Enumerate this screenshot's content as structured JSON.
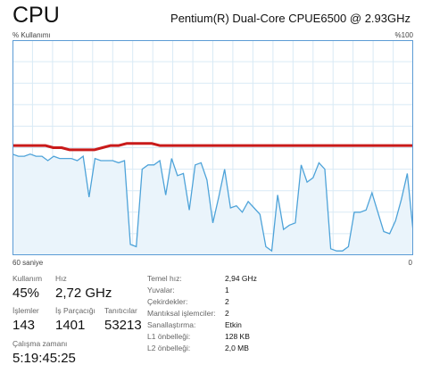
{
  "header": {
    "title": "CPU",
    "cpu_model": "Pentium(R) Dual-Core CPUE6500 @ 2.93GHz"
  },
  "graph": {
    "utilization_label": "% Kullanımı",
    "max_label": "%100",
    "time_span_label": "60 saniye",
    "min_label": "0",
    "colors": {
      "line": "#4ea3d9",
      "fill": "#eaf4fb",
      "grid": "#d9eaf5",
      "border": "#5b9bd5",
      "overlay": "#c91a1a"
    },
    "usage_percent": [
      47,
      46,
      46,
      47,
      46,
      46,
      44,
      46,
      45,
      45,
      45,
      44,
      46,
      27,
      45,
      44,
      44,
      44,
      43,
      44,
      5,
      4,
      40,
      42,
      42,
      44,
      28,
      45,
      37,
      38,
      21,
      42,
      43,
      35,
      15,
      27,
      40,
      22,
      23,
      20,
      25,
      22,
      19,
      4,
      2,
      28,
      12,
      14,
      15,
      42,
      34,
      36,
      43,
      40,
      3,
      2,
      2,
      4,
      20,
      20,
      21,
      29,
      20,
      11,
      10,
      16,
      26,
      38,
      11
    ],
    "overlay_percent": [
      51,
      51,
      51,
      51,
      51,
      50,
      50,
      49,
      49,
      49,
      49,
      50,
      51,
      51,
      52,
      52,
      52,
      52,
      51,
      51,
      51,
      51,
      51,
      51,
      51,
      51,
      51,
      51,
      51,
      51,
      51,
      51,
      51,
      51,
      51,
      51,
      51,
      51,
      51,
      51,
      51,
      51,
      51,
      51,
      51,
      51,
      51,
      51,
      51,
      51
    ]
  },
  "stats": {
    "utilization": {
      "label": "Kullanım",
      "value": "45%"
    },
    "speed": {
      "label": "Hız",
      "value": "2,72 GHz"
    },
    "processes": {
      "label": "İşlemler",
      "value": "143"
    },
    "threads": {
      "label": "İş Parçacığı",
      "value": "1401"
    },
    "handles": {
      "label": "Tanıtıcılar",
      "value": "53213"
    },
    "uptime": {
      "label": "Çalışma zamanı",
      "value": "5:19:45:25"
    }
  },
  "specs": [
    {
      "key": "Temel hız:",
      "value": "2,94 GHz"
    },
    {
      "key": "Yuvalar:",
      "value": "1"
    },
    {
      "key": "Çekirdekler:",
      "value": "2"
    },
    {
      "key": "Mantıksal işlemciler:",
      "value": "2"
    },
    {
      "key": "Sanallaştırma:",
      "value": "Etkin"
    },
    {
      "key": "L1 önbelleği:",
      "value": "128 KB"
    },
    {
      "key": "L2 önbelleği:",
      "value": "2,0 MB"
    }
  ]
}
